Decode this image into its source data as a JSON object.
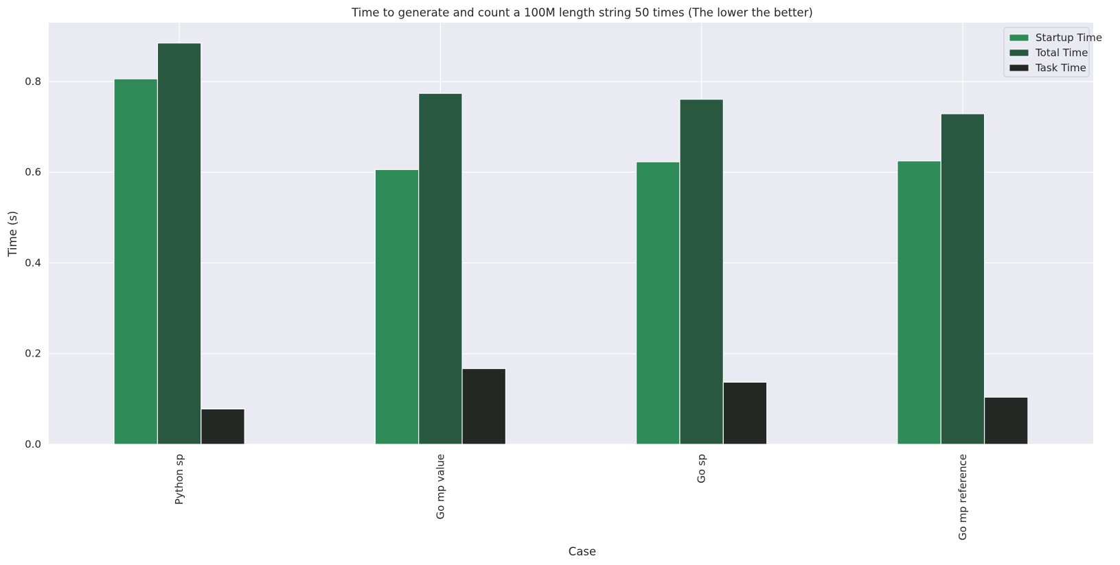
{
  "chart_data": {
    "type": "bar",
    "title": "Time to generate and count a 100M length string 50 times (The lower the better)",
    "xlabel": "Case",
    "ylabel": "Time (s)",
    "categories": [
      "Python sp",
      "Go mp value",
      "Go sp",
      "Go mp reference"
    ],
    "series": [
      {
        "name": "Startup Time",
        "color": "#2e8b57",
        "values": [
          0.806,
          0.606,
          0.623,
          0.625
        ]
      },
      {
        "name": "Total Time",
        "color": "#285840",
        "values": [
          0.885,
          0.774,
          0.761,
          0.729
        ]
      },
      {
        "name": "Task Time",
        "color": "#232824",
        "values": [
          0.078,
          0.167,
          0.137,
          0.104
        ]
      }
    ],
    "ylim": [
      0,
      0.93
    ],
    "yticks": [
      "0.0",
      "0.2",
      "0.4",
      "0.6",
      "0.8"
    ],
    "grid": true,
    "legend_position": "top-right",
    "background": "#eaeaf2"
  }
}
